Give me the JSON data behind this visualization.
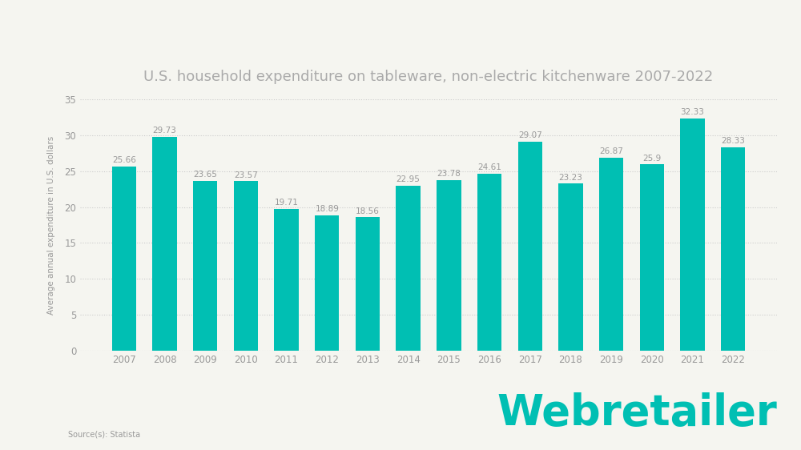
{
  "title": "U.S. household expenditure on tableware, non-electric kitchenware 2007-2022",
  "years": [
    2007,
    2008,
    2009,
    2010,
    2011,
    2012,
    2013,
    2014,
    2015,
    2016,
    2017,
    2018,
    2019,
    2020,
    2021,
    2022
  ],
  "values": [
    25.66,
    29.73,
    23.65,
    23.57,
    19.71,
    18.89,
    18.56,
    22.95,
    23.78,
    24.61,
    29.07,
    23.23,
    26.87,
    25.9,
    32.33,
    28.33
  ],
  "bar_color": "#00BFB3",
  "background_color": "#F5F5F0",
  "ylabel": "Average annual expenditure in U.S. dollars",
  "ylim": [
    0,
    35
  ],
  "yticks": [
    0,
    5,
    10,
    15,
    20,
    25,
    30,
    35
  ],
  "source_text": "Source(s): Statista",
  "watermark": "Webretailer",
  "title_fontsize": 13,
  "label_fontsize": 7.5,
  "tick_fontsize": 8.5,
  "ylabel_fontsize": 7.5,
  "grid_color": "#CCCCCC",
  "text_color": "#999999",
  "title_color": "#AAAAAA",
  "value_label_color": "#999999"
}
